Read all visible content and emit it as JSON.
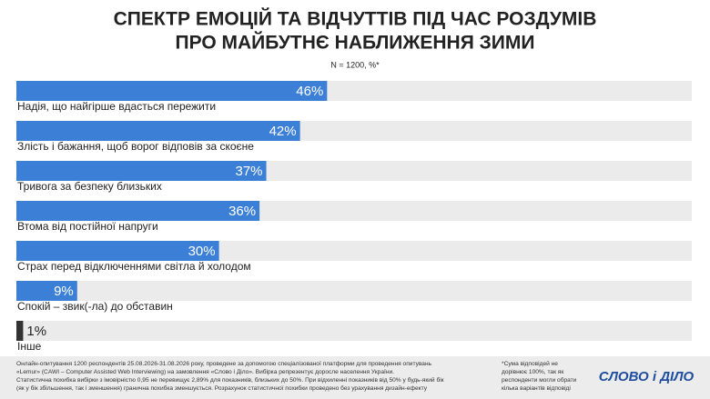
{
  "chart_data": {
    "type": "bar",
    "orientation": "horizontal",
    "title": [
      "СПЕКТР ЕМОЦІЙ ТА ВІДЧУТТІВ ПІД ЧАС РОЗДУМІВ",
      "ПРО МАЙБУТНЄ НАБЛИЖЕННЯ ЗИМИ"
    ],
    "subtitle": "N = 1200, %*",
    "categories": [
      "Надія, що найгірше вдасться пережити",
      "Злість і бажання, щоб ворог відповів за скоєне",
      "Тривога за безпеку близьких",
      "Втома від постійної напруги",
      "Страх перед відключеннями світла й холодом",
      "Спокій – звик(-ла) до обставин",
      "Інше"
    ],
    "values": [
      46,
      42,
      37,
      36,
      30,
      9,
      1
    ],
    "value_labels": [
      "46%",
      "42%",
      "37%",
      "36%",
      "30%",
      "9%",
      "1%"
    ],
    "colors": [
      "#3b7fd6",
      "#3b7fd6",
      "#3b7fd6",
      "#3b7fd6",
      "#3b7fd6",
      "#3b7fd6",
      "#333333"
    ],
    "xlim": [
      0,
      100
    ]
  },
  "footer": {
    "method": [
      "Онлайн-опитування 1200 респондентів 25.08.2026-31.08.2026 року, проведене за допомогою спеціалізованої платформи для проведення опитувань",
      "«Lemur» (CAWI – Computer Assisted Web Interviewing) на замовлення «Слово і Діло». Вибірка репрезентує доросле населення України.",
      "Статистична похибка вибірки з імовірністю 0,95 не перевищує 2,89% для показників, близьких до 50%. При відхиленні показників від 50% у будь-який бік",
      "(як у бік збільшення, так і зменшення) гранична похибка зменшується. Розрахунок статистичної похибки проведено без урахування дизайн-ефекту"
    ],
    "note": [
      "*Сума відповідей не",
      "дорівнює 100%, так як",
      "респонденти могли обрати",
      "кілька варіантів відповіді"
    ],
    "logo": "СЛОВО і ДІЛО"
  }
}
